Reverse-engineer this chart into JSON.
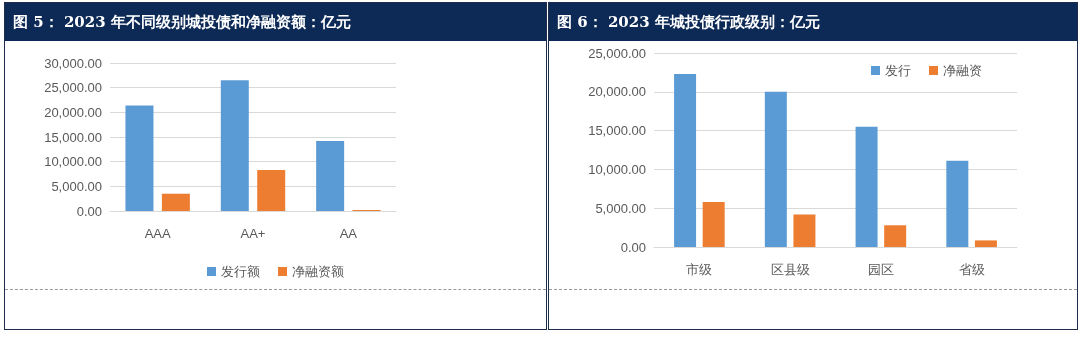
{
  "chart_data": [
    {
      "type": "bar",
      "title": "图 5： 2023 年不同级别城投债和净融资额：亿元",
      "categories": [
        "AAA",
        "AA+",
        "AA"
      ],
      "series": [
        {
          "name": "发行额",
          "color": "#5b9bd5",
          "values": [
            21400,
            26500,
            14200
          ]
        },
        {
          "name": "净融资额",
          "color": "#ed7d31",
          "values": [
            3500,
            8300,
            200
          ]
        }
      ],
      "ylim": [
        0,
        30000
      ],
      "yticks": [
        {
          "value": 0,
          "label": "0.00"
        },
        {
          "value": 5000,
          "label": "5,000.00"
        },
        {
          "value": 10000,
          "label": "10,000.00"
        },
        {
          "value": 15000,
          "label": "15,000.00"
        },
        {
          "value": 20000,
          "label": "20,000.00"
        },
        {
          "value": 25000,
          "label": "25,000.00"
        },
        {
          "value": 30000,
          "label": "30,000.00"
        }
      ],
      "grid": "y",
      "legend": "bottom"
    },
    {
      "type": "bar",
      "title": "图 6： 2023 年城投债行政级别：亿元",
      "categories": [
        "市级",
        "区县级",
        "园区",
        "省级"
      ],
      "series": [
        {
          "name": "发行",
          "color": "#5b9bd5",
          "values": [
            22300,
            20000,
            15500,
            11100
          ]
        },
        {
          "name": "净融资",
          "color": "#ed7d31",
          "values": [
            5800,
            4200,
            2800,
            850
          ]
        }
      ],
      "ylim": [
        0,
        25000
      ],
      "yticks": [
        {
          "value": 0,
          "label": "0.00"
        },
        {
          "value": 5000,
          "label": "5,000.00"
        },
        {
          "value": 10000,
          "label": "10,000.00"
        },
        {
          "value": 15000,
          "label": "15,000.00"
        },
        {
          "value": 20000,
          "label": "20,000.00"
        },
        {
          "value": 25000,
          "label": "25,000.00"
        }
      ],
      "grid": "y",
      "legend": "top right"
    }
  ]
}
